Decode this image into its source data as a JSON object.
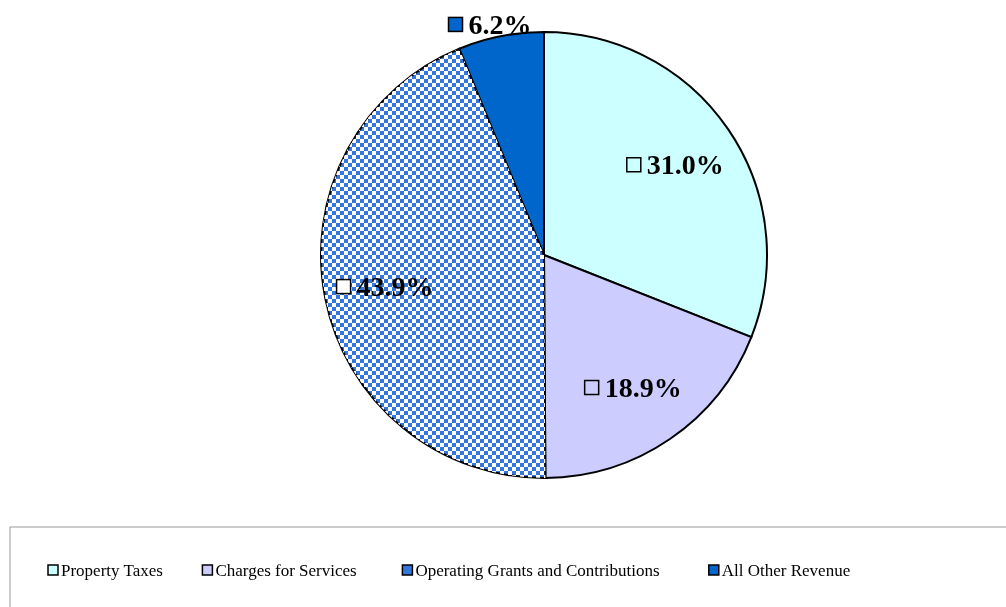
{
  "chart_data": {
    "type": "pie",
    "categories": [
      "Property Taxes",
      "Charges for Services",
      "Operating Grants and Contributions",
      "All Other Revenue"
    ],
    "values": [
      31.0,
      18.9,
      43.9,
      6.2
    ],
    "colors": [
      "#ccffff",
      "#ccccff",
      "#3377dd",
      "#0066cc"
    ],
    "value_labels": [
      "31.0%",
      "18.9%",
      "43.9%",
      "6.2%"
    ],
    "legend": "bottom"
  }
}
